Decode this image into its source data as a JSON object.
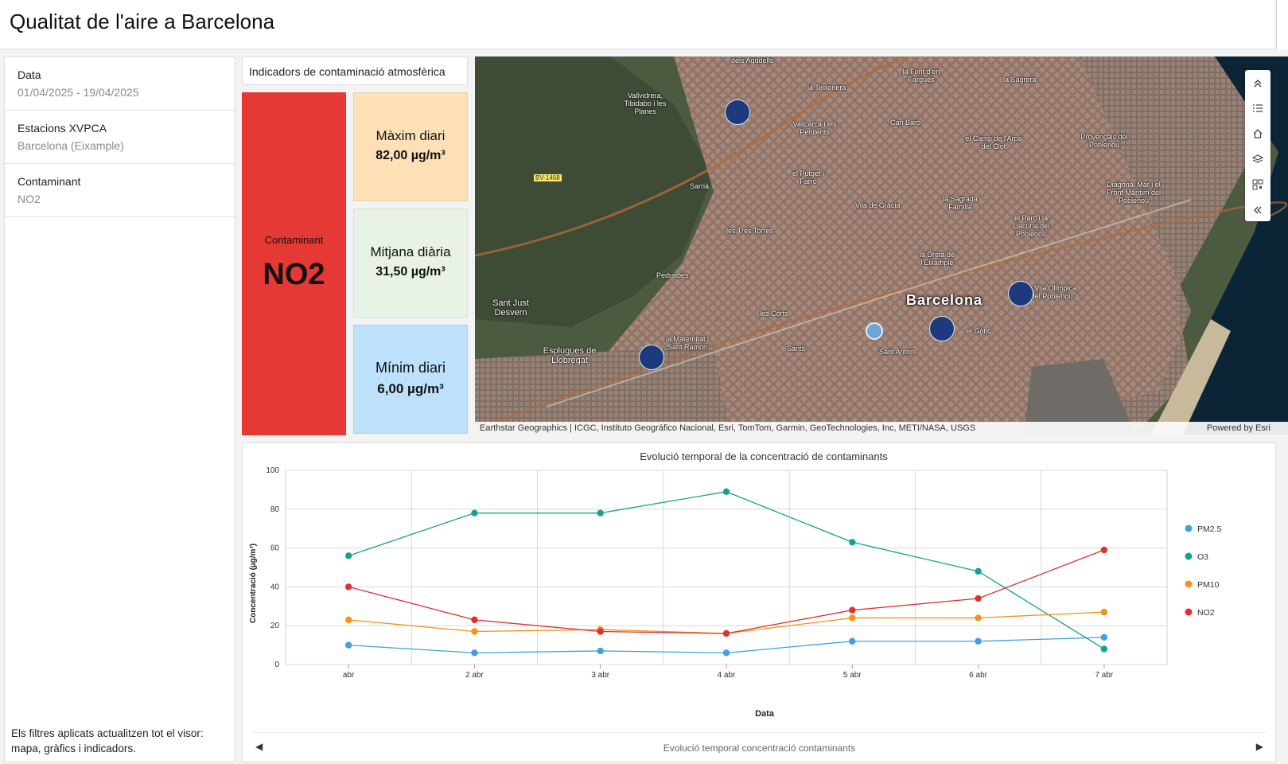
{
  "header": {
    "title": "Qualitat de l'aire a Barcelona"
  },
  "filters": {
    "items": [
      {
        "label": "Data",
        "value": "01/04/2025 - 19/04/2025"
      },
      {
        "label": "Estacions XVPCA",
        "value": "Barcelona (Eixample)"
      },
      {
        "label": "Contaminant",
        "value": "NO2"
      }
    ],
    "note": "Els filtres aplicats actualitzen tot el visor: mapa, gràfics i indicadors."
  },
  "indicators": {
    "title": "Indicadors de contaminació atmosfèrica",
    "pollutant_label": "Contaminant",
    "pollutant_value": "NO2",
    "max": {
      "label": "Màxim diari",
      "value": "82,00 µg/m³"
    },
    "avg": {
      "label": "Mitjana diària",
      "value": "31,50 µg/m³"
    },
    "min": {
      "label": "Mínim diari",
      "value": "6,00 µg/m³"
    },
    "colors": {
      "pollutant": "#e53935",
      "max": "#fde0b6",
      "avg": "#e8f3e5",
      "min": "#bde0fb"
    }
  },
  "map": {
    "city": "Barcelona",
    "road_label": "BV-1468",
    "labels": [
      "dels Agudells",
      "la Font d'en Fargues",
      "la Sagrera",
      "Vallvidrera, Tibidabo i les Planes",
      "la Teixonera",
      "Can Baró",
      "Vallcarca i els Penitents",
      "el Camp de l'Arpa del Clot",
      "Provençals del Poblenou",
      "el Putget i Farró",
      "Sarrià",
      "Vila de Gràcia",
      "la Sagrada Família",
      "Diagonal Mar i el Front Marítim del Poblenou",
      "el Parc i la Llacuna del Poblenou",
      "les Tres Torres",
      "la Dreta de l'Eixample",
      "Pedralbes",
      "la Vila Olímpica del Poblenou",
      "Sant Just Desvern",
      "les Corts",
      "el Gòtic",
      "la Maternitat i Sant Ramon",
      "Esplugues de Llobregat",
      "Sants",
      "Sant Antoni"
    ],
    "attribution": "Earthstar Geographics | ICGC, Instituto Geográfico Nacional, Esri, TomTom, Garmin, GeoTechnologies, Inc, METI/NASA, USGS",
    "powered_by": "Powered by Esri",
    "toolbar_icons": [
      "chevron-up-icon",
      "legend-list-icon",
      "home-icon",
      "layers-icon",
      "qr-code-icon",
      "collapse-icon"
    ]
  },
  "chart_footer": {
    "caption": "Evolució temporal concentració contaminants"
  },
  "chart_data": {
    "type": "line",
    "title": "Evolució temporal de la concentració de contaminants",
    "xlabel": "Data",
    "ylabel": "Concentració (µg/m³)",
    "categories": [
      "abr",
      "2 abr",
      "3 abr",
      "4 abr",
      "5 abr",
      "6 abr",
      "7 abr"
    ],
    "ylim": [
      0,
      100
    ],
    "yticks": [
      0,
      20,
      40,
      60,
      80,
      100
    ],
    "grid": true,
    "legend": "right",
    "series": [
      {
        "name": "PM2.5",
        "color": "#3fa0e6",
        "values": [
          10,
          6,
          7,
          6,
          12,
          12,
          14
        ]
      },
      {
        "name": "O3",
        "color": "#1aa092",
        "values": [
          56,
          78,
          78,
          89,
          63,
          48,
          8
        ]
      },
      {
        "name": "PM10",
        "color": "#f39317",
        "values": [
          23,
          17,
          18,
          16,
          24,
          24,
          27
        ]
      },
      {
        "name": "NO2",
        "color": "#e03131",
        "values": [
          40,
          23,
          17,
          16,
          28,
          34,
          59
        ]
      }
    ]
  }
}
